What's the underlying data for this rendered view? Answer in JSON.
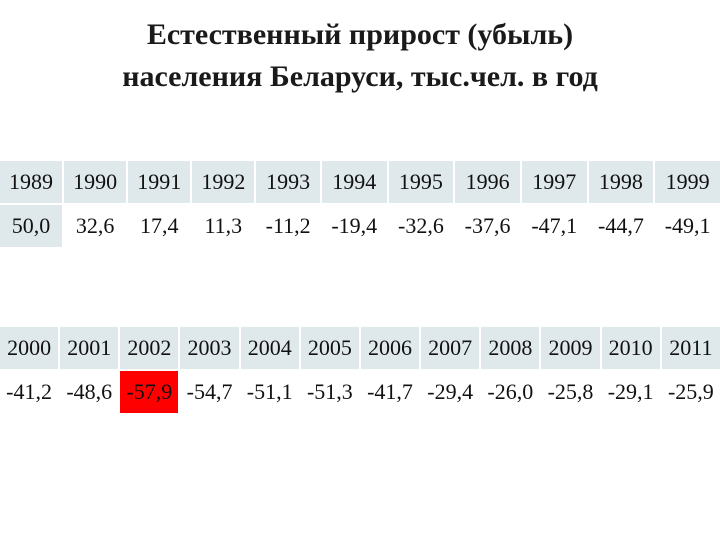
{
  "title": {
    "line1": "Естественный прирост (убыль)",
    "line2": "населения Беларуси, тыс.чел. в год"
  },
  "table1": {
    "years": [
      "1989",
      "1990",
      "1991",
      "1992",
      "1993",
      "1994",
      "1995",
      "1996",
      "1997",
      "1998",
      "1999"
    ],
    "values": [
      "50,0",
      "32,6",
      "17,4",
      "11,3",
      "-11,2",
      "-19,4",
      "-32,6",
      "-37,6",
      "-47,1",
      "-44,7",
      "-49,1"
    ]
  },
  "table2": {
    "years": [
      "2000",
      "2001",
      "2002",
      "2003",
      "2004",
      "2005",
      "2006",
      "2007",
      "2008",
      "2009",
      "2010",
      "2011"
    ],
    "values": [
      "-41,2",
      "-48,6",
      "-57,9",
      "-54,7",
      "-51,1",
      "-51,3",
      "-41,7",
      "-29,4",
      "-26,0",
      "-25,8",
      "-29,1",
      "-25,9"
    ]
  },
  "colors": {
    "header_fill": "#dfe9ec",
    "highlight_min": "#ff0000"
  }
}
